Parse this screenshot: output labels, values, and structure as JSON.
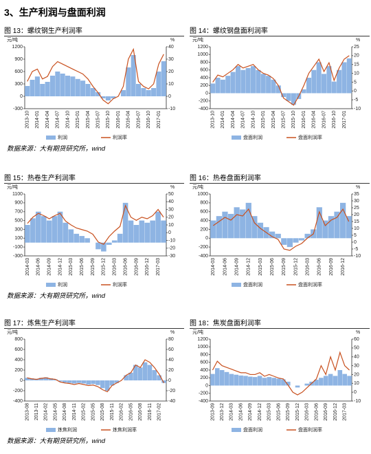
{
  "heading": "3、生产利润与盘面利润",
  "chart_data": [
    {
      "type": "combo",
      "caption": "图 13：螺纹钢生产利润率",
      "ylabel": "元/吨",
      "y2label": "%",
      "categories": [
        "2013-10",
        null,
        "2014-01",
        null,
        "2014-04",
        null,
        "2014-07",
        null,
        "2014-10",
        null,
        "2015-01",
        null,
        "2015-04",
        null,
        "2015-07",
        null,
        "2015-10",
        null,
        "2016-01",
        null,
        "2016-04",
        null,
        "2016-07",
        null,
        "2016-10",
        null,
        "2017-01",
        null
      ],
      "ylim": [
        -300,
        1200
      ],
      "yticks": [
        -300,
        0,
        300,
        600,
        900,
        1200
      ],
      "y2lim": [
        -10,
        40
      ],
      "y2ticks": [
        -10,
        0,
        10,
        20,
        30,
        40
      ],
      "series": [
        {
          "name": "利润",
          "type": "bar",
          "color": "#8eb4e3",
          "values": [
            250,
            400,
            480,
            300,
            350,
            500,
            600,
            550,
            500,
            480,
            420,
            380,
            300,
            200,
            100,
            -50,
            -100,
            -50,
            0,
            150,
            700,
            1000,
            300,
            200,
            150,
            200,
            600,
            850
          ]
        },
        {
          "name": "利润率",
          "type": "line",
          "axis": "y2",
          "color": "#c8501e",
          "values": [
            12,
            20,
            22,
            14,
            16,
            24,
            28,
            26,
            24,
            22,
            20,
            18,
            14,
            8,
            3,
            -3,
            -6,
            -2,
            0,
            8,
            30,
            38,
            12,
            8,
            6,
            10,
            26,
            34
          ]
        }
      ]
    },
    {
      "type": "combo",
      "caption": "图 14：螺纹钢盘面利润率",
      "ylabel": "元/吨",
      "y2label": "%",
      "categories": [
        "2013-10",
        null,
        "2014-01",
        null,
        "2014-04",
        null,
        "2014-07",
        null,
        "2014-10",
        null,
        "2015-01",
        null,
        "2015-04",
        null,
        "2015-07",
        null,
        "2015-10",
        null,
        "2016-01",
        null,
        "2016-04",
        null,
        "2016-07",
        null,
        "2016-10",
        null,
        "2017-01",
        null
      ],
      "ylim": [
        -400,
        1200
      ],
      "yticks": [
        -400,
        -200,
        0,
        200,
        400,
        600,
        800,
        1000,
        1200
      ],
      "y2lim": [
        -10,
        25
      ],
      "y2ticks": [
        -10,
        -5,
        0,
        5,
        10,
        15,
        20,
        25
      ],
      "series": [
        {
          "name": "盘面利润",
          "type": "bar",
          "color": "#8eb4e3",
          "values": [
            250,
            400,
            350,
            450,
            550,
            700,
            600,
            650,
            700,
            600,
            500,
            450,
            350,
            200,
            -100,
            -200,
            -300,
            -150,
            100,
            400,
            600,
            800,
            500,
            700,
            300,
            600,
            800,
            900
          ]
        },
        {
          "name": "盘面利润率",
          "type": "line",
          "axis": "y2",
          "color": "#c8501e",
          "values": [
            5,
            9,
            8,
            10,
            12,
            15,
            13,
            14,
            15,
            12,
            10,
            9,
            7,
            3,
            -4,
            -6,
            -8,
            -3,
            3,
            10,
            14,
            18,
            11,
            16,
            6,
            13,
            18,
            20
          ]
        }
      ]
    },
    {
      "type": "combo",
      "caption": "图 15：热卷生产利润率",
      "ylabel": "元/吨",
      "y2label": "%",
      "categories": [
        "2014-03",
        null,
        "2014-06",
        null,
        "2014-09",
        null,
        "2014-12",
        null,
        "2015-03",
        null,
        "2015-06",
        null,
        "2015-09",
        null,
        "2015-12",
        null,
        "2016-03",
        null,
        "2016-06",
        null,
        "2016-09",
        null,
        "2016-12",
        null,
        "2017-03",
        null
      ],
      "ylim": [
        -300,
        1100
      ],
      "yticks": [
        -300,
        -100,
        100,
        300,
        500,
        700,
        900,
        1100
      ],
      "y2lim": [
        -30,
        50
      ],
      "y2ticks": [
        -30,
        -20,
        -10,
        0,
        10,
        20,
        30,
        40,
        50
      ],
      "series": [
        {
          "name": "利润",
          "type": "bar",
          "color": "#8eb4e3",
          "values": [
            400,
            550,
            700,
            600,
            500,
            600,
            700,
            450,
            300,
            200,
            150,
            100,
            0,
            -150,
            -200,
            -50,
            50,
            200,
            900,
            500,
            400,
            500,
            450,
            500,
            700,
            500
          ]
        },
        {
          "name": "利润率",
          "type": "line",
          "axis": "y2",
          "color": "#c8501e",
          "values": [
            12,
            20,
            25,
            22,
            18,
            22,
            25,
            15,
            10,
            6,
            4,
            2,
            -2,
            -12,
            -15,
            -5,
            2,
            8,
            35,
            20,
            16,
            20,
            18,
            22,
            30,
            20
          ]
        }
      ]
    },
    {
      "type": "combo",
      "caption": "图 16：热卷盘面利润率",
      "ylabel": "元/吨",
      "y2label": "%",
      "categories": [
        "2014-03",
        null,
        "2014-06",
        null,
        "2014-09",
        null,
        "2014-12",
        null,
        "2015-03",
        null,
        "2015-06",
        null,
        "2015-09",
        null,
        "2015-12",
        null,
        "2016-03",
        null,
        "2016-06",
        null,
        "2016-09",
        null,
        "2016-12",
        null
      ],
      "ylim": [
        -400,
        1000
      ],
      "yticks": [
        -400,
        -200,
        0,
        200,
        400,
        600,
        800,
        1000
      ],
      "y2lim": [
        -10,
        35
      ],
      "y2ticks": [
        -10,
        -5,
        0,
        5,
        10,
        15,
        20,
        25,
        30,
        35
      ],
      "series": [
        {
          "name": "盘面利润",
          "type": "bar",
          "color": "#8eb4e3",
          "values": [
            400,
            500,
            600,
            550,
            700,
            650,
            800,
            500,
            350,
            250,
            150,
            100,
            -150,
            -200,
            -100,
            -50,
            100,
            200,
            700,
            400,
            500,
            600,
            800,
            500
          ]
        },
        {
          "name": "盘面利润率",
          "type": "line",
          "axis": "y2",
          "color": "#c8501e",
          "values": [
            12,
            15,
            18,
            16,
            20,
            19,
            24,
            14,
            10,
            7,
            4,
            2,
            -5,
            -6,
            -3,
            -1,
            3,
            6,
            22,
            12,
            16,
            18,
            24,
            15
          ]
        }
      ]
    },
    {
      "type": "combo",
      "caption": "图 17：炼焦生产利润率",
      "ylabel": "元/吨",
      "y2label": "%",
      "categories": [
        "2013-08",
        null,
        "2013-11",
        null,
        "2014-02",
        null,
        "2014-05",
        null,
        "2014-08",
        null,
        "2014-11",
        null,
        "2015-02",
        null,
        "2015-05",
        null,
        "2015-08",
        null,
        "2015-11",
        null,
        "2016-02",
        null,
        "2016-05",
        null,
        "2016-08",
        null,
        "2016-11",
        null,
        "2017-02",
        null
      ],
      "ylim": [
        -400,
        800
      ],
      "yticks": [
        -400,
        -200,
        0,
        200,
        400,
        600,
        800
      ],
      "y2lim": [
        -40,
        80
      ],
      "y2ticks": [
        -40,
        -20,
        0,
        20,
        40,
        60,
        80
      ],
      "series": [
        {
          "name": "炼焦利润",
          "type": "bar",
          "color": "#8eb4e3",
          "values": [
            50,
            40,
            30,
            50,
            60,
            40,
            20,
            -20,
            -40,
            -50,
            -60,
            -50,
            -60,
            -80,
            -70,
            -90,
            -150,
            -200,
            -100,
            -50,
            0,
            100,
            150,
            300,
            250,
            350,
            300,
            200,
            100,
            -50
          ]
        },
        {
          "name": "炼焦利润率",
          "type": "line",
          "axis": "y2",
          "color": "#c8501e",
          "values": [
            5,
            3,
            2,
            4,
            5,
            3,
            2,
            -3,
            -5,
            -6,
            -8,
            -6,
            -8,
            -10,
            -9,
            -12,
            -18,
            -22,
            -10,
            -5,
            0,
            10,
            15,
            30,
            25,
            40,
            35,
            25,
            12,
            -5
          ]
        }
      ]
    },
    {
      "type": "combo",
      "caption": "图 18：焦炭盘面利润率",
      "ylabel": "元/吨",
      "y2label": "%",
      "categories": [
        "2013-09",
        null,
        "2013-12",
        null,
        "2014-03",
        null,
        "2014-06",
        null,
        "2014-09",
        null,
        "2014-12",
        null,
        "2015-03",
        null,
        "2015-06",
        null,
        "2015-09",
        null,
        "2015-12",
        null,
        "2016-03",
        null,
        "2016-06",
        null,
        "2016-09",
        null,
        "2016-12",
        null,
        "2017-03",
        null
      ],
      "ylim": [
        -400,
        1200
      ],
      "yticks": [
        -400,
        -200,
        0,
        200,
        400,
        600,
        800,
        1000,
        1200
      ],
      "y2lim": [
        -10,
        60
      ],
      "y2ticks": [
        -10,
        0,
        10,
        20,
        30,
        40,
        50,
        60
      ],
      "series": [
        {
          "name": "盘面利润",
          "type": "bar",
          "color": "#8eb4e3",
          "values": [
            300,
            450,
            400,
            350,
            300,
            280,
            260,
            250,
            230,
            220,
            250,
            200,
            220,
            200,
            180,
            160,
            100,
            0,
            -50,
            0,
            50,
            100,
            150,
            200,
            250,
            300,
            250,
            400,
            300,
            250
          ]
        },
        {
          "name": "盘面利润率",
          "type": "line",
          "axis": "y2",
          "color": "#c8501e",
          "values": [
            25,
            35,
            30,
            28,
            26,
            24,
            22,
            22,
            20,
            20,
            22,
            18,
            20,
            18,
            16,
            15,
            8,
            0,
            -3,
            0,
            5,
            10,
            15,
            30,
            20,
            40,
            25,
            45,
            30,
            25
          ]
        }
      ]
    }
  ],
  "sources": [
    "数据来源：大有期货研究所，wind",
    "数据来源：大有期货研究所，wind",
    "数据来源：大有期货研究所，wind"
  ]
}
